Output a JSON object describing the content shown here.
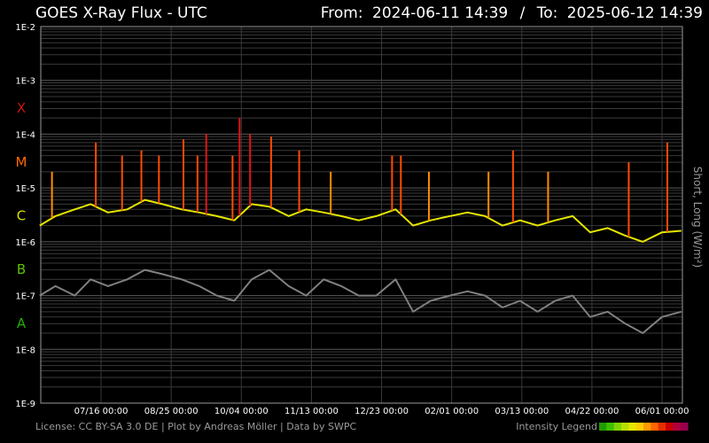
{
  "header": {
    "title": "GOES X-Ray Flux - UTC",
    "from_label": "From:",
    "from_value": "2024-06-11 14:39",
    "separator": "/",
    "to_label": "To:",
    "to_value": "2025-06-12 14:39"
  },
  "footer": {
    "license": "License: CC BY-SA 3.0 DE | Plot by Andreas Möller | Data by SWPC",
    "legend_label": "Intensity Legend",
    "legend_colors": [
      "#1f9d00",
      "#3fbf00",
      "#7fd400",
      "#b6e000",
      "#e6e600",
      "#ffcc00",
      "#ff9900",
      "#ff6600",
      "#e62e00",
      "#cc0000",
      "#b3003c",
      "#99004d"
    ]
  },
  "class_labels": [
    {
      "letter": "X",
      "flux": 0.0001,
      "color": "#cc1111"
    },
    {
      "letter": "M",
      "flux": 1e-05,
      "color": "#ff6a00"
    },
    {
      "letter": "C",
      "flux": 1e-06,
      "color": "#d8e000"
    },
    {
      "letter": "B",
      "flux": 1e-07,
      "color": "#5fc000"
    },
    {
      "letter": "A",
      "flux": 1e-08,
      "color": "#22b000"
    }
  ],
  "chart_data": {
    "type": "line",
    "title": "GOES X-Ray Flux - UTC",
    "ylabel": "Short, Long (W/m²)",
    "yscale": "log",
    "ylim": [
      1e-09,
      0.01
    ],
    "y_ticks": [
      {
        "value": 0.01,
        "label": "1E-2"
      },
      {
        "value": 0.001,
        "label": "1E-3"
      },
      {
        "value": 0.0001,
        "label": "1E-4"
      },
      {
        "value": 1e-05,
        "label": "1E-5"
      },
      {
        "value": 1e-06,
        "label": "1E-6"
      },
      {
        "value": 1e-07,
        "label": "1E-7"
      },
      {
        "value": 1e-08,
        "label": "1E-8"
      },
      {
        "value": 1e-09,
        "label": "1E-9"
      }
    ],
    "xlim": [
      "2024-06-11 14:39",
      "2025-06-12 14:39"
    ],
    "x_ticks": [
      {
        "value": "2024-07-16 00:00",
        "label": "07/16 00:00"
      },
      {
        "value": "2024-08-25 00:00",
        "label": "08/25 00:00"
      },
      {
        "value": "2024-10-04 00:00",
        "label": "10/04 00:00"
      },
      {
        "value": "2024-11-13 00:00",
        "label": "11/13 00:00"
      },
      {
        "value": "2024-12-23 00:00",
        "label": "12/23 00:00"
      },
      {
        "value": "2025-02-01 00:00",
        "label": "02/01 00:00"
      },
      {
        "value": "2025-03-13 00:00",
        "label": "03/13 00:00"
      },
      {
        "value": "2025-04-22 00:00",
        "label": "04/22 00:00"
      },
      {
        "value": "2025-06-01 00:00",
        "label": "06/01 00:00"
      }
    ],
    "grid": true,
    "series": [
      {
        "color": "#e6e600",
        "x": [
          "2024-06-11",
          "2024-06-20",
          "2024-07-01",
          "2024-07-10",
          "2024-07-20",
          "2024-07-31",
          "2024-08-10",
          "2024-08-20",
          "2024-08-31",
          "2024-09-10",
          "2024-09-20",
          "2024-09-30",
          "2024-10-10",
          "2024-10-20",
          "2024-10-31",
          "2024-11-10",
          "2024-11-20",
          "2024-11-30",
          "2024-12-10",
          "2024-12-20",
          "2024-12-31",
          "2025-01-10",
          "2025-01-20",
          "2025-01-31",
          "2025-02-10",
          "2025-02-20",
          "2025-03-02",
          "2025-03-12",
          "2025-03-22",
          "2025-04-01",
          "2025-04-11",
          "2025-04-21",
          "2025-05-01",
          "2025-05-11",
          "2025-05-21",
          "2025-06-01",
          "2025-06-12"
        ],
        "y": [
          2e-06,
          3e-06,
          4e-06,
          5e-06,
          3.5e-06,
          4e-06,
          6e-06,
          5e-06,
          4e-06,
          3.5e-06,
          3e-06,
          2.5e-06,
          5e-06,
          4.5e-06,
          3e-06,
          4e-06,
          3.5e-06,
          3e-06,
          2.5e-06,
          3e-06,
          4e-06,
          2e-06,
          2.5e-06,
          3e-06,
          3.5e-06,
          3e-06,
          2e-06,
          2.5e-06,
          2e-06,
          2.5e-06,
          3e-06,
          1.5e-06,
          1.8e-06,
          1.3e-06,
          1e-06,
          1.5e-06,
          1.6e-06
        ]
      },
      {
        "color": "#808080",
        "x": [
          "2024-06-11",
          "2024-06-20",
          "2024-07-01",
          "2024-07-10",
          "2024-07-20",
          "2024-07-31",
          "2024-08-10",
          "2024-08-20",
          "2024-08-31",
          "2024-09-10",
          "2024-09-20",
          "2024-09-30",
          "2024-10-10",
          "2024-10-20",
          "2024-10-31",
          "2024-11-10",
          "2024-11-20",
          "2024-11-30",
          "2024-12-10",
          "2024-12-20",
          "2024-12-31",
          "2025-01-10",
          "2025-01-20",
          "2025-01-31",
          "2025-02-10",
          "2025-02-20",
          "2025-03-02",
          "2025-03-12",
          "2025-03-22",
          "2025-04-01",
          "2025-04-11",
          "2025-04-21",
          "2025-05-01",
          "2025-05-11",
          "2025-05-21",
          "2025-06-01",
          "2025-06-12"
        ],
        "y": [
          1e-07,
          1.5e-07,
          1e-07,
          2e-07,
          1.5e-07,
          2e-07,
          3e-07,
          2.5e-07,
          2e-07,
          1.5e-07,
          1e-07,
          8e-08,
          2e-07,
          3e-07,
          1.5e-07,
          1e-07,
          2e-07,
          1.5e-07,
          1e-07,
          1e-07,
          2e-07,
          5e-08,
          8e-08,
          1e-07,
          1.2e-07,
          1e-07,
          6e-08,
          8e-08,
          5e-08,
          8e-08,
          1e-07,
          4e-08,
          5e-08,
          3e-08,
          2e-08,
          4e-08,
          5e-08
        ]
      }
    ],
    "peaks": [
      {
        "date": "2024-06-18",
        "flux": 2e-05
      },
      {
        "date": "2024-07-13",
        "flux": 7e-05
      },
      {
        "date": "2024-07-28",
        "flux": 4e-05
      },
      {
        "date": "2024-08-08",
        "flux": 5e-05
      },
      {
        "date": "2024-08-18",
        "flux": 4e-05
      },
      {
        "date": "2024-09-01",
        "flux": 8e-05
      },
      {
        "date": "2024-09-09",
        "flux": 4e-05
      },
      {
        "date": "2024-09-14",
        "flux": 0.0001
      },
      {
        "date": "2024-09-29",
        "flux": 4e-05
      },
      {
        "date": "2024-10-03",
        "flux": 0.0002
      },
      {
        "date": "2024-10-09",
        "flux": 0.0001
      },
      {
        "date": "2024-10-21",
        "flux": 9e-05
      },
      {
        "date": "2024-11-06",
        "flux": 5e-05
      },
      {
        "date": "2024-11-24",
        "flux": 2e-05
      },
      {
        "date": "2024-12-29",
        "flux": 4e-05
      },
      {
        "date": "2025-01-03",
        "flux": 4e-05
      },
      {
        "date": "2025-01-19",
        "flux": 2e-05
      },
      {
        "date": "2025-02-22",
        "flux": 2e-05
      },
      {
        "date": "2025-03-08",
        "flux": 5e-05
      },
      {
        "date": "2025-03-28",
        "flux": 2e-05
      },
      {
        "date": "2025-05-13",
        "flux": 3e-05
      },
      {
        "date": "2025-06-04",
        "flux": 7e-05
      }
    ]
  }
}
